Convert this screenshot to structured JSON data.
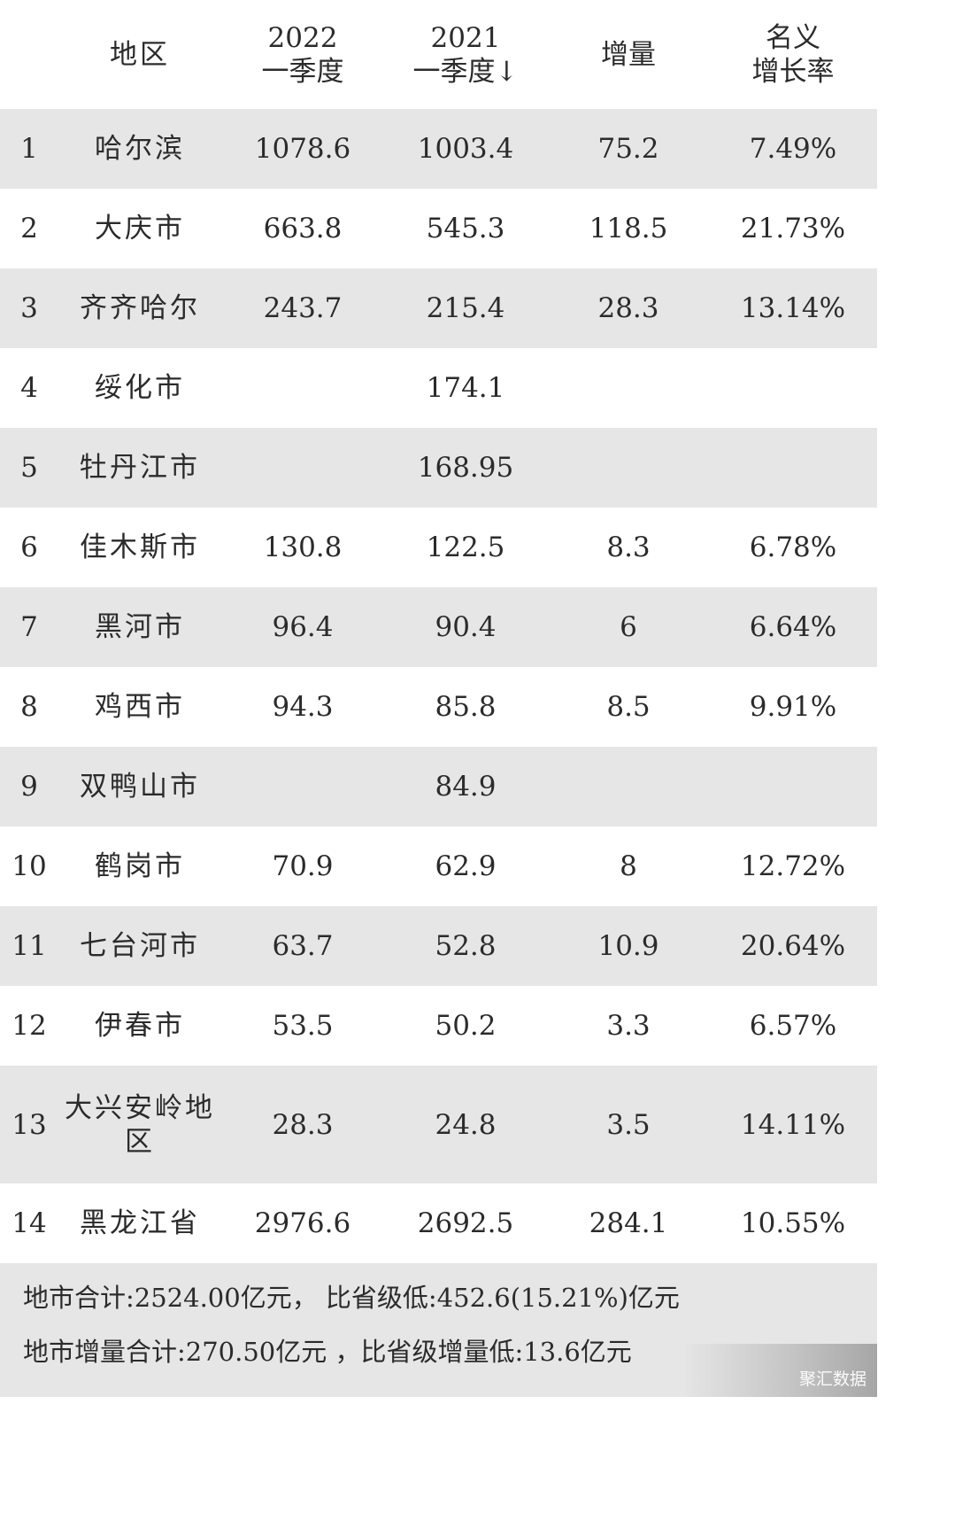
{
  "header": {
    "region": "地区",
    "col2022_year": "2022",
    "col2022_period": "一季度",
    "col2021_year": "2021",
    "col2021_period": "一季度↓",
    "increment": "增量",
    "rate_line1": "名义",
    "rate_line2": "增长率"
  },
  "rows": [
    {
      "idx": "1",
      "name": "哈尔滨",
      "v2022": "1078.6",
      "v2021": "1003.4",
      "inc": "75.2",
      "rate": "7.49%"
    },
    {
      "idx": "2",
      "name": "大庆市",
      "v2022": "663.8",
      "v2021": "545.3",
      "inc": "118.5",
      "rate": "21.73%"
    },
    {
      "idx": "3",
      "name": "齐齐哈尔",
      "v2022": "243.7",
      "v2021": "215.4",
      "inc": "28.3",
      "rate": "13.14%"
    },
    {
      "idx": "4",
      "name": "绥化市",
      "v2022": "",
      "v2021": "174.1",
      "inc": "",
      "rate": ""
    },
    {
      "idx": "5",
      "name": "牡丹江市",
      "v2022": "",
      "v2021": "168.95",
      "inc": "",
      "rate": ""
    },
    {
      "idx": "6",
      "name": "佳木斯市",
      "v2022": "130.8",
      "v2021": "122.5",
      "inc": "8.3",
      "rate": "6.78%"
    },
    {
      "idx": "7",
      "name": "黑河市",
      "v2022": "96.4",
      "v2021": "90.4",
      "inc": "6",
      "rate": "6.64%"
    },
    {
      "idx": "8",
      "name": "鸡西市",
      "v2022": "94.3",
      "v2021": "85.8",
      "inc": "8.5",
      "rate": "9.91%"
    },
    {
      "idx": "9",
      "name": "双鸭山市",
      "v2022": "",
      "v2021": "84.9",
      "inc": "",
      "rate": ""
    },
    {
      "idx": "10",
      "name": "鹤岗市",
      "v2022": "70.9",
      "v2021": "62.9",
      "inc": "8",
      "rate": "12.72%"
    },
    {
      "idx": "11",
      "name": "七台河市",
      "v2022": "63.7",
      "v2021": "52.8",
      "inc": "10.9",
      "rate": "20.64%"
    },
    {
      "idx": "12",
      "name": "伊春市",
      "v2022": "53.5",
      "v2021": "50.2",
      "inc": "3.3",
      "rate": "6.57%"
    },
    {
      "idx": "13",
      "name": "大兴安岭地\n区",
      "v2022": "28.3",
      "v2021": "24.8",
      "inc": "3.5",
      "rate": "14.11%"
    },
    {
      "idx": "14",
      "name": "黑龙江省",
      "v2022": "2976.6",
      "v2021": "2692.5",
      "inc": "284.1",
      "rate": "10.55%"
    }
  ],
  "notes": {
    "line1": "地市合计:2524.00亿元， 比省级低:452.6(15.21%)亿元",
    "line2": "地市增量合计:270.50亿元 ，比省级增量低:13.6亿元"
  },
  "watermark": "聚汇数据"
}
